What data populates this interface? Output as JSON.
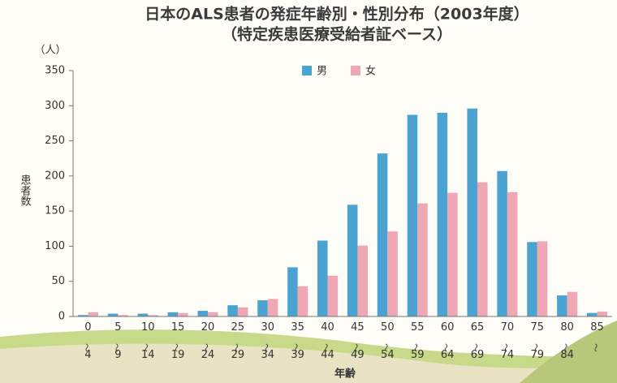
{
  "chart_data": {
    "type": "bar",
    "title": "日本のALS患者の発症年齢別・性別分布（2003年度）",
    "subtitle": "（特定疾患医療受給者証ベース）",
    "y_unit": "（人）",
    "ylabel": "患者数",
    "xlabel": "年齢",
    "categories": [
      "0〜4",
      "5〜9",
      "10〜14",
      "15〜19",
      "20〜24",
      "25〜29",
      "30〜34",
      "35〜39",
      "40〜44",
      "45〜49",
      "50〜54",
      "55〜59",
      "60〜64",
      "65〜69",
      "70〜74",
      "75〜79",
      "80〜84",
      "85〜"
    ],
    "series": [
      {
        "name": "男",
        "color": "#4ba3d1",
        "values": [
          2,
          4,
          4,
          6,
          8,
          16,
          23,
          70,
          108,
          159,
          232,
          287,
          290,
          296,
          207,
          106,
          30,
          5
        ]
      },
      {
        "name": "女",
        "color": "#f0a7b4",
        "values": [
          6,
          2,
          2,
          5,
          6,
          13,
          25,
          43,
          58,
          101,
          121,
          161,
          176,
          191,
          177,
          107,
          35,
          7
        ]
      }
    ],
    "ylim": [
      0,
      350
    ],
    "yticks": [
      0,
      50,
      100,
      150,
      200,
      250,
      300,
      350
    ],
    "grid": false,
    "legend": "top"
  }
}
